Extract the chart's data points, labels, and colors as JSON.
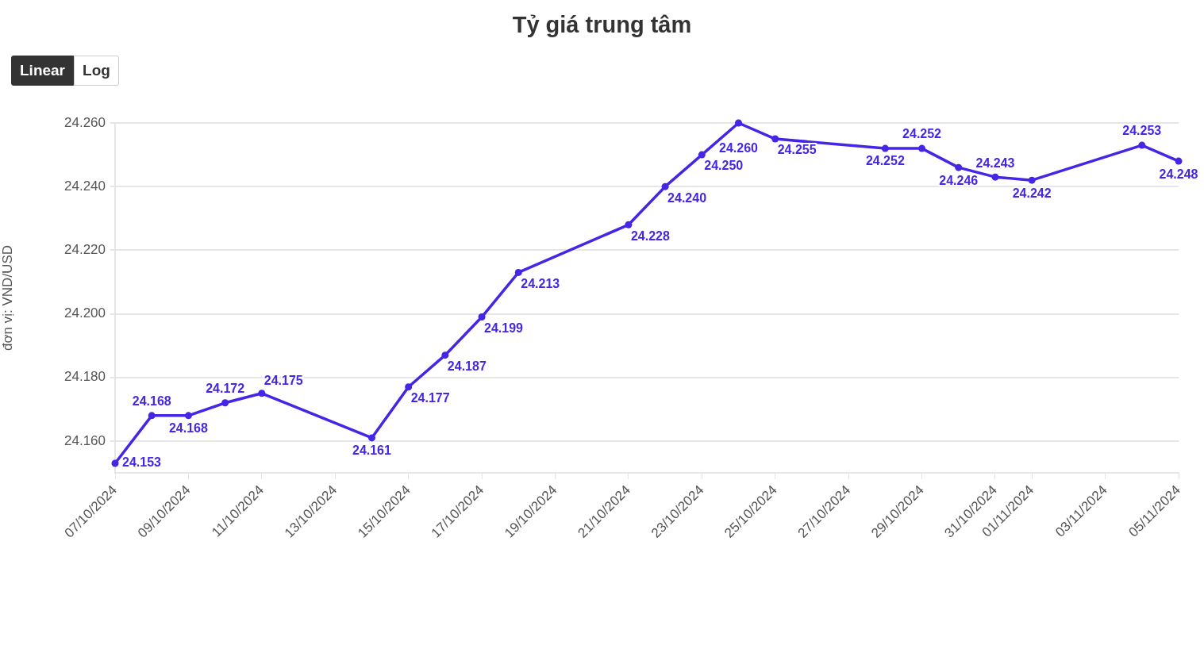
{
  "chart_data": {
    "type": "line",
    "title": "Tỷ giá trung tâm",
    "ylabel": "đơn vị: VND/USD",
    "x": [
      "2024-10-07",
      "2024-10-08",
      "2024-10-09",
      "2024-10-10",
      "2024-10-11",
      "2024-10-14",
      "2024-10-15",
      "2024-10-16",
      "2024-10-17",
      "2024-10-18",
      "2024-10-21",
      "2024-10-22",
      "2024-10-23",
      "2024-10-24",
      "2024-10-25",
      "2024-10-28",
      "2024-10-29",
      "2024-10-30",
      "2024-10-31",
      "2024-11-01",
      "2024-11-04",
      "2024-11-05"
    ],
    "values": [
      24153,
      24168,
      24168,
      24172,
      24175,
      24161,
      24177,
      24187,
      24199,
      24213,
      24228,
      24240,
      24250,
      24260,
      24255,
      24252,
      24252,
      24246,
      24243,
      24242,
      24253,
      24248
    ],
    "value_labels": [
      "24.153",
      "24.168",
      "24.168",
      "24.172",
      "24.175",
      "24.161",
      "24.177",
      "24.187",
      "24.199",
      "24.213",
      "24.228",
      "24.240",
      "24.250",
      "24.260",
      "24.255",
      "24.252",
      "24.252",
      "24.246",
      "24.243",
      "24.242",
      "24.253",
      "24.248"
    ],
    "color": "#4525e6",
    "marker": "circle",
    "grid": "y",
    "xlim": [
      "2024-10-07",
      "2024-11-05"
    ],
    "xticks": [
      {
        "value": "2024-10-07",
        "label": "07/10/2024"
      },
      {
        "value": "2024-10-09",
        "label": "09/10/2024"
      },
      {
        "value": "2024-10-11",
        "label": "11/10/2024"
      },
      {
        "value": "2024-10-13",
        "label": "13/10/2024"
      },
      {
        "value": "2024-10-15",
        "label": "15/10/2024"
      },
      {
        "value": "2024-10-17",
        "label": "17/10/2024"
      },
      {
        "value": "2024-10-19",
        "label": "19/10/2024"
      },
      {
        "value": "2024-10-21",
        "label": "21/10/2024"
      },
      {
        "value": "2024-10-23",
        "label": "23/10/2024"
      },
      {
        "value": "2024-10-25",
        "label": "25/10/2024"
      },
      {
        "value": "2024-10-27",
        "label": "27/10/2024"
      },
      {
        "value": "2024-10-29",
        "label": "29/10/2024"
      },
      {
        "value": "2024-10-31",
        "label": "31/10/2024"
      },
      {
        "value": "2024-11-01",
        "label": "01/11/2024"
      },
      {
        "value": "2024-11-03",
        "label": "03/11/2024"
      },
      {
        "value": "2024-11-05",
        "label": "05/11/2024"
      }
    ],
    "ylim": [
      24150,
      24260
    ],
    "yticks": [
      {
        "value": 24160,
        "label": "24.160"
      },
      {
        "value": 24180,
        "label": "24.180"
      },
      {
        "value": 24200,
        "label": "24.200"
      },
      {
        "value": 24220,
        "label": "24.220"
      },
      {
        "value": 24240,
        "label": "24.240"
      },
      {
        "value": 24260,
        "label": "24.260"
      }
    ],
    "annotations": [
      "Linear",
      "Log"
    ]
  }
}
